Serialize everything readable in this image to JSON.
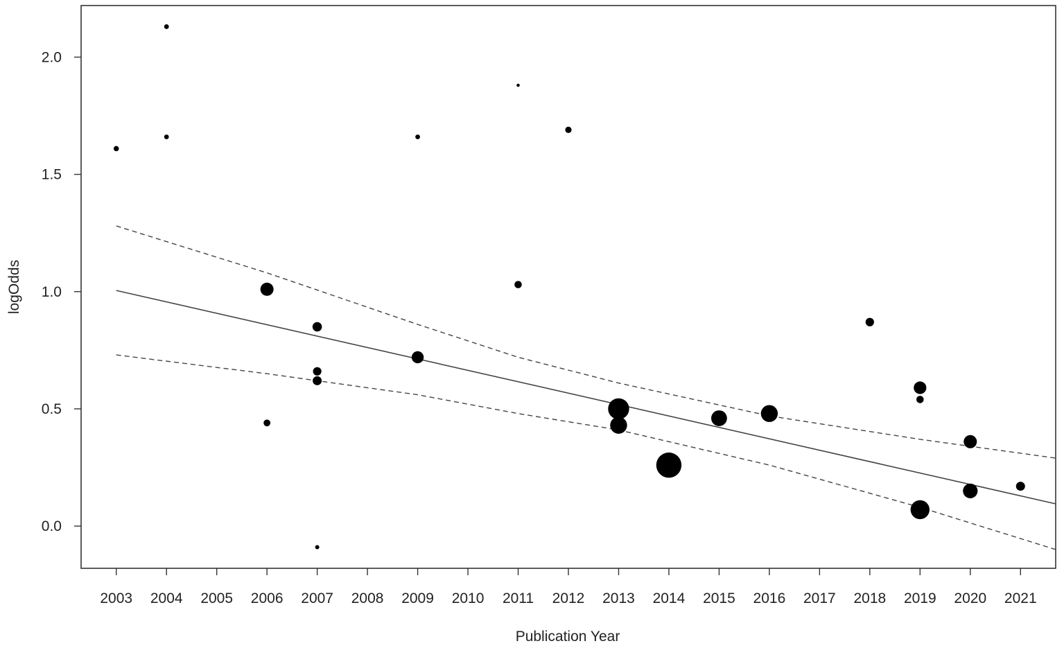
{
  "chart_data": {
    "type": "scatter",
    "title": "",
    "xlabel": "Publication Year",
    "ylabel": "logOdds",
    "x_ticks": [
      "2003",
      "2004",
      "2005",
      "2006",
      "2007",
      "2008",
      "2009",
      "2010",
      "2011",
      "2012",
      "2013",
      "2014",
      "2015",
      "2016",
      "2017",
      "2018",
      "2019",
      "2020",
      "2021"
    ],
    "y_ticks": [
      "0.0",
      "0.5",
      "1.0",
      "1.5",
      "2.0"
    ],
    "xlim": [
      2002.3,
      2021.7
    ],
    "ylim": [
      -0.18,
      2.22
    ],
    "grid": false,
    "legend": "none",
    "points": [
      {
        "x": 2003,
        "y": 1.61,
        "weight": 1.0
      },
      {
        "x": 2004,
        "y": 2.13,
        "weight": 0.9
      },
      {
        "x": 2004,
        "y": 1.66,
        "weight": 0.9
      },
      {
        "x": 2006,
        "y": 1.01,
        "weight": 2.5
      },
      {
        "x": 2006,
        "y": 0.44,
        "weight": 1.3
      },
      {
        "x": 2007,
        "y": 0.85,
        "weight": 1.8
      },
      {
        "x": 2007,
        "y": 0.66,
        "weight": 1.6
      },
      {
        "x": 2007,
        "y": 0.62,
        "weight": 1.7
      },
      {
        "x": 2007,
        "y": -0.09,
        "weight": 0.8
      },
      {
        "x": 2009,
        "y": 1.66,
        "weight": 0.9
      },
      {
        "x": 2009,
        "y": 0.72,
        "weight": 2.3
      },
      {
        "x": 2011,
        "y": 1.88,
        "weight": 0.6
      },
      {
        "x": 2011,
        "y": 1.03,
        "weight": 1.4
      },
      {
        "x": 2012,
        "y": 1.69,
        "weight": 1.2
      },
      {
        "x": 2013,
        "y": 0.5,
        "weight": 4.0
      },
      {
        "x": 2013,
        "y": 0.43,
        "weight": 3.2
      },
      {
        "x": 2014,
        "y": 0.26,
        "weight": 4.8
      },
      {
        "x": 2015,
        "y": 0.46,
        "weight": 3.0
      },
      {
        "x": 2016,
        "y": 0.48,
        "weight": 3.2
      },
      {
        "x": 2018,
        "y": 0.87,
        "weight": 1.6
      },
      {
        "x": 2019,
        "y": 0.59,
        "weight": 2.4
      },
      {
        "x": 2019,
        "y": 0.54,
        "weight": 1.4
      },
      {
        "x": 2019,
        "y": 0.07,
        "weight": 3.6
      },
      {
        "x": 2020,
        "y": 0.36,
        "weight": 2.5
      },
      {
        "x": 2020,
        "y": 0.15,
        "weight": 2.8
      },
      {
        "x": 2021,
        "y": 0.17,
        "weight": 1.7
      }
    ],
    "regression": {
      "line": [
        [
          2003,
          1.005
        ],
        [
          2021.7,
          0.095
        ]
      ],
      "ci_upper": [
        [
          2003,
          1.28
        ],
        [
          2006,
          1.08
        ],
        [
          2009,
          0.86
        ],
        [
          2011,
          0.72
        ],
        [
          2013,
          0.61
        ],
        [
          2016,
          0.47
        ],
        [
          2019,
          0.37
        ],
        [
          2021.7,
          0.29
        ]
      ],
      "ci_lower": [
        [
          2003,
          0.73
        ],
        [
          2006,
          0.65
        ],
        [
          2009,
          0.56
        ],
        [
          2011,
          0.48
        ],
        [
          2013,
          0.41
        ],
        [
          2016,
          0.26
        ],
        [
          2019,
          0.08
        ],
        [
          2021.7,
          -0.1
        ]
      ]
    }
  }
}
